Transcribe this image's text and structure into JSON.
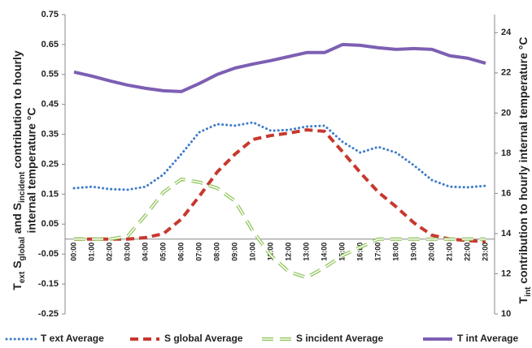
{
  "chart_data": {
    "type": "line",
    "ylabel": [
      "T",
      "ext",
      " S",
      "global",
      " and S",
      "incident",
      " contribution to hourly",
      "internal temperature °C"
    ],
    "y2label": [
      "T",
      "int",
      " contribution to hourly internal temperature °C"
    ],
    "categories": [
      "00:00",
      "01:00",
      "02:00",
      "03:00",
      "04:00",
      "05:00",
      "06:00",
      "07:00",
      "08:00",
      "09:00",
      "10:00",
      "11:00",
      "12:00",
      "13:00",
      "14:00",
      "15:00",
      "16:00",
      "17:00",
      "18:00",
      "19:00",
      "20:00",
      "21:00",
      "22:00",
      "23:00"
    ],
    "series": [
      {
        "name": "T ext Average",
        "color": "#3d7cc9",
        "style": "dotted",
        "values": [
          0.17,
          0.175,
          0.167,
          0.165,
          0.175,
          0.216,
          0.284,
          0.357,
          0.384,
          0.379,
          0.39,
          0.362,
          0.365,
          0.376,
          0.379,
          0.325,
          0.289,
          0.308,
          0.289,
          0.246,
          0.197,
          0.175,
          0.173,
          0.178
        ]
      },
      {
        "name": "S global Average",
        "color": "#c8382e",
        "style": "dashed",
        "values": [
          0,
          0,
          0,
          0,
          0.005,
          0.018,
          0.067,
          0.143,
          0.224,
          0.284,
          0.333,
          0.346,
          0.354,
          0.365,
          0.36,
          0.292,
          0.222,
          0.157,
          0.108,
          0.054,
          0.013,
          0,
          -0.005,
          -0.008
        ]
      },
      {
        "name": "S incident Average",
        "color": "#8cc152",
        "style": "hollow-dashed",
        "values": [
          0,
          0,
          0,
          0.01,
          0.08,
          0.157,
          0.2,
          0.19,
          0.17,
          0.127,
          0.026,
          -0.055,
          -0.109,
          -0.128,
          -0.095,
          -0.055,
          -0.027,
          0,
          0,
          0,
          0,
          0,
          0,
          0
        ]
      },
      {
        "name": "T int Average",
        "color": "#7d5fb3",
        "style": "solid",
        "axis": "y2",
        "values": [
          22.04,
          21.84,
          21.6,
          21.39,
          21.23,
          21.11,
          21.07,
          21.47,
          21.92,
          22.24,
          22.44,
          22.61,
          22.81,
          23.01,
          23.01,
          23.41,
          23.37,
          23.25,
          23.17,
          23.21,
          23.17,
          22.85,
          22.73,
          22.48
        ]
      }
    ],
    "ylim": [
      -0.25,
      0.75
    ],
    "yticks": [
      -0.25,
      -0.15,
      -0.05,
      0.05,
      0.15,
      0.25,
      0.35,
      0.45,
      0.55,
      0.65,
      0.75
    ],
    "y2lim": [
      10,
      24.9
    ],
    "y2ticks": [
      10,
      12,
      14,
      16,
      18,
      20,
      22,
      24
    ],
    "legend": "bottom"
  }
}
